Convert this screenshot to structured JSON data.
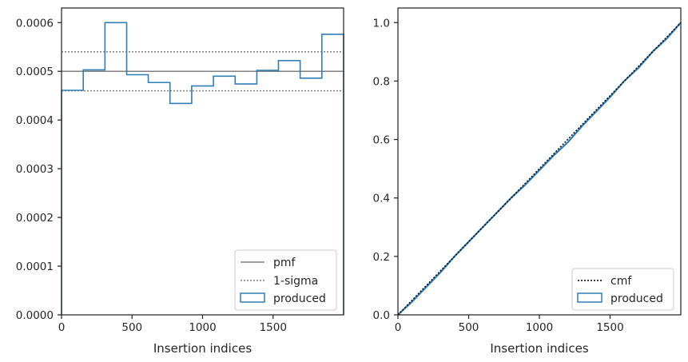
{
  "chart_data": [
    {
      "type": "step-histogram",
      "xlabel": "Insertion indices",
      "ylabel": "",
      "xlim": [
        0,
        2000
      ],
      "ylim": [
        0,
        0.00063
      ],
      "xticks": [
        0,
        500,
        1000,
        1500
      ],
      "yticks": [
        0.0,
        0.0001,
        0.0002,
        0.0003,
        0.0004,
        0.0005,
        0.0006
      ],
      "ytick_labels": [
        "0.0000",
        "0.0001",
        "0.0002",
        "0.0003",
        "0.0004",
        "0.0005",
        "0.0006"
      ],
      "xtick_labels": [
        "0",
        "500",
        "1000",
        "1500"
      ],
      "pmf": {
        "name": "pmf",
        "value": 0.0005,
        "color": "#808080"
      },
      "sigma": {
        "name": "1-sigma",
        "lower": 0.00046,
        "upper": 0.00054,
        "color": "#808080"
      },
      "produced": {
        "name": "produced",
        "color": "#2f7fb5",
        "bin_edges": [
          0,
          154,
          308,
          462,
          615,
          769,
          923,
          1077,
          1231,
          1385,
          1538,
          1692,
          1846,
          2000
        ],
        "values": [
          0.000461,
          0.000503,
          0.0006,
          0.000493,
          0.000477,
          0.000434,
          0.00047,
          0.00049,
          0.000474,
          0.000502,
          0.000522,
          0.000486,
          0.000576
        ]
      },
      "legend_position": "lower right",
      "legend": [
        "pmf",
        "1-sigma",
        "produced"
      ]
    },
    {
      "type": "line",
      "xlabel": "Insertion indices",
      "ylabel": "",
      "xlim": [
        0,
        2000
      ],
      "ylim": [
        0,
        1.05
      ],
      "xticks": [
        0,
        500,
        1000,
        1500
      ],
      "yticks": [
        0.0,
        0.2,
        0.4,
        0.6,
        0.8,
        1.0
      ],
      "ytick_labels": [
        "0.0",
        "0.2",
        "0.4",
        "0.6",
        "0.8",
        "1.0"
      ],
      "xtick_labels": [
        "0",
        "500",
        "1000",
        "1500"
      ],
      "cmf": {
        "name": "cmf",
        "x": [
          0,
          2000
        ],
        "y": [
          0,
          1.0
        ],
        "color": "#000000"
      },
      "produced": {
        "name": "produced",
        "color": "#2f7fb5",
        "x": [
          0,
          100,
          200,
          300,
          400,
          500,
          600,
          700,
          800,
          900,
          1000,
          1100,
          1200,
          1300,
          1400,
          1500,
          1600,
          1700,
          1800,
          1900,
          2000
        ],
        "y": [
          0,
          0.045,
          0.095,
          0.145,
          0.2,
          0.25,
          0.3,
          0.35,
          0.4,
          0.445,
          0.495,
          0.545,
          0.59,
          0.645,
          0.695,
          0.745,
          0.8,
          0.845,
          0.9,
          0.945,
          1.0
        ]
      },
      "legend_position": "lower right",
      "legend": [
        "cmf",
        "produced"
      ]
    }
  ]
}
